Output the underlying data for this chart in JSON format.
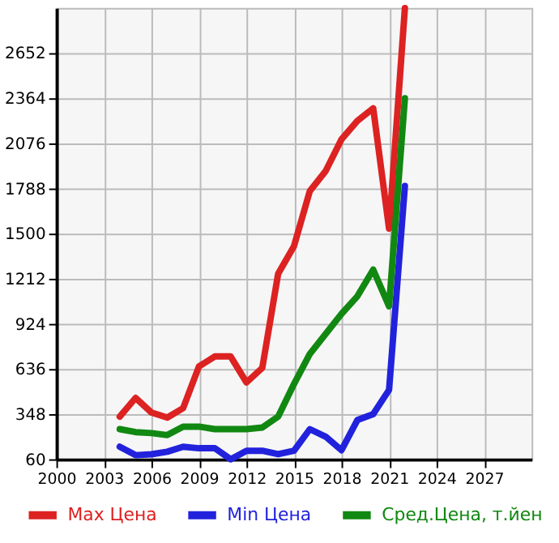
{
  "chart_data": {
    "type": "line",
    "x": [
      2004,
      2005,
      2006,
      2007,
      2008,
      2009,
      2010,
      2011,
      2012,
      2013,
      2014,
      2015,
      2016,
      2017,
      2018,
      2019,
      2020,
      2021,
      2022
    ],
    "series": [
      {
        "name": "Max Цена",
        "color": "#dd2222",
        "values": [
          332,
          451,
          358,
          326,
          386,
          652,
          716,
          716,
          550,
          643,
          1244,
          1420,
          1772,
          1900,
          2102,
          2220,
          2300,
          1532,
          2940
        ]
      },
      {
        "name": "Min Цена",
        "color": "#2222dd",
        "values": [
          140,
          86,
          92,
          108,
          140,
          130,
          130,
          60,
          114,
          114,
          92,
          114,
          252,
          204,
          118,
          310,
          348,
          502,
          1804
        ]
      },
      {
        "name": "Сред.Цена, т.йен",
        "color": "#118811",
        "values": [
          252,
          233,
          227,
          214,
          268,
          268,
          252,
          252,
          252,
          262,
          332,
          540,
          732,
          860,
          988,
          1100,
          1270,
          1036,
          2364
        ]
      }
    ],
    "xlim": [
      2000,
      2030
    ],
    "xticks": [
      2000,
      2003,
      2006,
      2009,
      2012,
      2015,
      2018,
      2021,
      2024,
      2027
    ],
    "ylim": [
      60,
      2940
    ],
    "yticks": [
      60,
      348,
      636,
      924,
      1212,
      1500,
      1788,
      2076,
      2364,
      2652
    ],
    "grid": true,
    "legend": "bottom",
    "marker": "none",
    "line_style": "solid"
  }
}
